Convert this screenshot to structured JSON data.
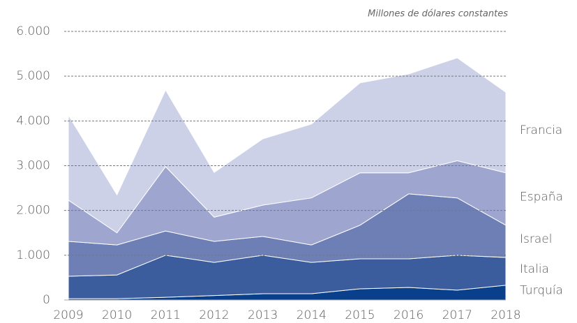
{
  "chart_data": {
    "type": "stacked_area",
    "subtitle": "Millones de dólares constantes",
    "categories": [
      "2009",
      "2010",
      "2011",
      "2012",
      "2013",
      "2014",
      "2015",
      "2016",
      "2017",
      "2018"
    ],
    "series": [
      {
        "name": "Turquía",
        "color": "#0a3f8c",
        "values": [
          30,
          30,
          60,
          100,
          140,
          140,
          250,
          280,
          220,
          330
        ]
      },
      {
        "name": "Italia",
        "color": "#3b5c9d",
        "values": [
          500,
          530,
          940,
          740,
          860,
          700,
          670,
          640,
          780,
          620
        ]
      },
      {
        "name": "Israel",
        "color": "#6d7fb5",
        "values": [
          780,
          670,
          540,
          470,
          420,
          390,
          750,
          1450,
          1280,
          720
        ]
      },
      {
        "name": "España",
        "color": "#9ea6d0",
        "values": [
          920,
          270,
          1440,
          540,
          700,
          1050,
          1170,
          470,
          830,
          1170
        ]
      },
      {
        "name": "Francia",
        "color": "#cdd1e8",
        "values": [
          1900,
          850,
          1710,
          1000,
          1480,
          1650,
          2010,
          2210,
          2300,
          1800
        ]
      }
    ],
    "ylim": [
      0,
      6000
    ],
    "yticks": [
      0,
      {
        "value": 1000,
        "label": "1.000"
      },
      {
        "value": 2000,
        "label": "2.000"
      },
      {
        "value": 3000,
        "label": "3.000"
      },
      {
        "value": 4000,
        "label": "4.000"
      },
      {
        "value": 5000,
        "label": "5.000"
      },
      {
        "value": 6000,
        "label": "6.000"
      }
    ],
    "grid": true
  }
}
